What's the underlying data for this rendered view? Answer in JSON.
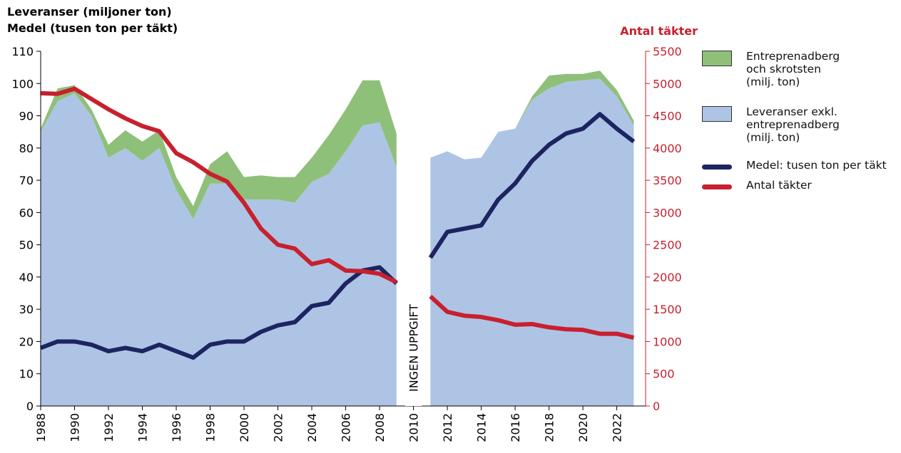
{
  "chart_data": {
    "type": "area-line",
    "title": "Leveranser (miljoner ton)",
    "subtitle": "Medel (tusen ton per täkt)",
    "y2_label": "Antal täkter",
    "annotation": "INGEN UPPGIFT",
    "x": [
      1988,
      1989,
      1990,
      1991,
      1992,
      1993,
      1994,
      1995,
      1996,
      1997,
      1998,
      1999,
      2000,
      2001,
      2002,
      2003,
      2004,
      2005,
      2006,
      2007,
      2008,
      2009,
      2010,
      2011,
      2012,
      2013,
      2014,
      2015,
      2016,
      2017,
      2018,
      2019,
      2020,
      2021,
      2022,
      2023
    ],
    "xlim": [
      1988,
      2023.7
    ],
    "xticks": [
      1988,
      1990,
      1992,
      1994,
      1996,
      1998,
      2000,
      2002,
      2004,
      2006,
      2008,
      2010,
      2012,
      2014,
      2016,
      2018,
      2020,
      2022
    ],
    "ylim": [
      0,
      110
    ],
    "yticks": [
      0,
      10,
      20,
      30,
      40,
      50,
      60,
      70,
      80,
      90,
      100,
      110
    ],
    "y2lim": [
      0,
      5500
    ],
    "y2ticks": [
      0,
      500,
      1000,
      1500,
      2000,
      2500,
      3000,
      3500,
      4000,
      4500,
      5000,
      5500
    ],
    "series": [
      {
        "name": "Entreprenadberg och skrotsten (milj. ton)",
        "kind": "area",
        "color": "#8fc07a",
        "values": [
          1,
          4,
          2.5,
          2,
          4,
          5.5,
          6,
          5.5,
          4,
          4,
          6,
          10,
          7,
          7.5,
          7,
          8,
          7.5,
          12,
          13,
          14,
          13,
          10.5,
          null,
          0,
          0,
          0,
          0,
          0,
          0,
          1,
          4,
          2.5,
          2,
          2.5,
          2,
          1.5
        ]
      },
      {
        "name": "Leveranser exkl. entreprenadberg (milj. ton)",
        "kind": "area",
        "color": "#aec4e5",
        "values": [
          85,
          94.5,
          97,
          90,
          77,
          80,
          76,
          80,
          67,
          58,
          69,
          69,
          64,
          64,
          64,
          63,
          69.5,
          72,
          79,
          87,
          88,
          74,
          null,
          77,
          79,
          76.5,
          77,
          85,
          86,
          95,
          98.5,
          100.5,
          101,
          101.5,
          96,
          87
        ]
      },
      {
        "name": "Medel: tusen ton per täkt",
        "kind": "line",
        "color": "#1c2461",
        "values": [
          18,
          20,
          20,
          19,
          17,
          18,
          17,
          19,
          17,
          15,
          19,
          20,
          20,
          23,
          25,
          26,
          31,
          32,
          38,
          42,
          43,
          38,
          null,
          46,
          54,
          55,
          56,
          64,
          69,
          76,
          81,
          84.5,
          86,
          90.5,
          86,
          82
        ]
      },
      {
        "name": "Antal täkter",
        "kind": "line",
        "axis": "y2",
        "color": "#c8202e",
        "values": [
          4850,
          4840,
          4920,
          4760,
          4600,
          4460,
          4340,
          4260,
          3920,
          3780,
          3600,
          3480,
          3150,
          2750,
          2500,
          2440,
          2200,
          2260,
          2100,
          2090,
          2050,
          1920,
          null,
          1700,
          1460,
          1400,
          1380,
          1330,
          1260,
          1270,
          1220,
          1190,
          1180,
          1120,
          1120,
          1060
        ]
      }
    ]
  }
}
